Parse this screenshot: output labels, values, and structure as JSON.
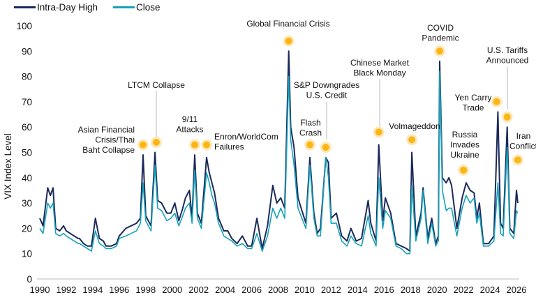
{
  "chart_data": {
    "type": "line",
    "title": "",
    "xlabel": "",
    "ylabel": "VIX Index Level",
    "xlim": [
      1990,
      2026
    ],
    "ylim": [
      0,
      100
    ],
    "grid": false,
    "legend_position": "top-left",
    "x_ticks": [
      "1990",
      "1992",
      "1994",
      "1996",
      "1998",
      "2000",
      "2002",
      "2004",
      "2006",
      "2008",
      "2010",
      "2012",
      "2014",
      "2016",
      "2018",
      "2020",
      "2022",
      "2024",
      "2026"
    ],
    "y_ticks": [
      "0",
      "10",
      "20",
      "30",
      "40",
      "50",
      "60",
      "70",
      "80",
      "90",
      "100"
    ],
    "colors": {
      "high": "#1b2a5c",
      "close": "#16a2b8",
      "marker": "#fdb515",
      "marker_halo": "#fde9b8",
      "leader": "#bbbbbb"
    },
    "x": [
      1990.0,
      1990.25,
      1990.6,
      1990.8,
      1991.0,
      1991.2,
      1991.5,
      1991.8,
      1992.0,
      1992.3,
      1992.6,
      1992.9,
      1993.0,
      1993.3,
      1993.6,
      1993.9,
      1994.2,
      1994.5,
      1994.8,
      1995.0,
      1995.4,
      1995.8,
      1996.0,
      1996.5,
      1996.9,
      1997.3,
      1997.6,
      1997.8,
      1998.0,
      1998.4,
      1998.7,
      1998.9,
      1999.2,
      1999.6,
      1999.9,
      2000.2,
      2000.5,
      2000.8,
      2001.0,
      2001.3,
      2001.5,
      2001.7,
      2001.9,
      2002.2,
      2002.6,
      2002.8,
      2003.0,
      2003.2,
      2003.5,
      2003.9,
      2004.2,
      2004.5,
      2004.9,
      2005.3,
      2005.7,
      2006.0,
      2006.4,
      2006.8,
      2007.2,
      2007.6,
      2007.9,
      2008.2,
      2008.5,
      2008.8,
      2008.95,
      2009.2,
      2009.5,
      2009.8,
      2010.1,
      2010.4,
      2010.7,
      2010.95,
      2011.2,
      2011.6,
      2011.8,
      2012.0,
      2012.4,
      2012.8,
      2013.2,
      2013.5,
      2013.9,
      2014.3,
      2014.8,
      2015.0,
      2015.4,
      2015.6,
      2015.9,
      2016.1,
      2016.5,
      2016.9,
      2017.3,
      2017.7,
      2017.95,
      2018.1,
      2018.4,
      2018.8,
      2018.95,
      2019.3,
      2019.6,
      2019.9,
      2020.1,
      2020.2,
      2020.4,
      2020.7,
      2020.9,
      2021.1,
      2021.5,
      2021.9,
      2022.2,
      2022.5,
      2022.8,
      2023.0,
      2023.2,
      2023.5,
      2023.9,
      2024.3,
      2024.6,
      2024.8,
      2025.0,
      2025.3,
      2025.5,
      2025.8,
      2026.0,
      2026.1
    ],
    "series": [
      {
        "name": "Intra-Day High",
        "values": [
          24,
          21,
          36,
          33,
          36,
          20,
          19,
          21,
          19,
          18,
          17,
          16,
          16,
          14,
          13,
          13,
          24,
          16,
          15,
          13,
          13,
          14,
          17,
          20,
          21,
          22,
          24,
          49,
          25,
          21,
          50,
          31,
          30,
          26,
          26,
          30,
          23,
          28,
          32,
          35,
          24,
          49,
          26,
          22,
          48,
          42,
          38,
          34,
          24,
          19,
          19,
          16,
          14,
          17,
          13,
          13,
          24,
          12,
          21,
          37,
          30,
          32,
          28,
          90,
          60,
          52,
          32,
          27,
          22,
          48,
          26,
          18,
          20,
          48,
          46,
          24,
          26,
          17,
          15,
          20,
          15,
          16,
          31,
          22,
          15,
          53,
          23,
          32,
          26,
          14,
          13,
          12,
          11,
          50,
          17,
          26,
          36,
          16,
          24,
          14,
          17,
          86,
          40,
          38,
          40,
          37,
          20,
          32,
          38,
          35,
          34,
          24,
          30,
          14,
          14,
          17,
          66,
          22,
          20,
          60,
          20,
          18,
          35,
          30
        ]
      },
      {
        "name": "Close",
        "values": [
          20,
          18,
          30,
          28,
          30,
          18,
          17,
          18,
          17,
          16,
          15,
          14,
          14,
          13,
          12,
          11,
          19,
          14,
          13,
          12,
          12,
          13,
          16,
          17,
          18,
          19,
          22,
          38,
          23,
          19,
          45,
          28,
          27,
          23,
          24,
          26,
          21,
          25,
          28,
          30,
          22,
          43,
          24,
          20,
          42,
          38,
          33,
          30,
          22,
          17,
          16,
          15,
          13,
          14,
          12,
          12,
          18,
          11,
          17,
          28,
          24,
          28,
          24,
          80,
          55,
          45,
          28,
          24,
          20,
          45,
          24,
          17,
          17,
          48,
          40,
          22,
          22,
          15,
          13,
          17,
          14,
          13,
          25,
          18,
          13,
          40,
          20,
          27,
          24,
          13,
          12,
          10,
          10,
          37,
          15,
          24,
          35,
          14,
          22,
          13,
          15,
          82,
          35,
          27,
          28,
          28,
          17,
          28,
          33,
          30,
          32,
          22,
          26,
          13,
          13,
          15,
          38,
          18,
          17,
          52,
          18,
          16,
          27,
          26
        ]
      }
    ],
    "annotations": [
      {
        "label": [
          "Asian Financial",
          "Crisis/Thai",
          "Baht Collapse"
        ],
        "x": 1997.8,
        "y": 53
      },
      {
        "label": [
          "LTCM Collapse"
        ],
        "x": 1998.8,
        "y": 54
      },
      {
        "label": [
          "9/11",
          "Attacks"
        ],
        "x": 2001.7,
        "y": 53
      },
      {
        "label": [
          "Enron/WorldCom",
          "Failures"
        ],
        "x": 2002.6,
        "y": 53
      },
      {
        "label": [
          "Global Financial Crisis"
        ],
        "x": 2008.8,
        "y": 94
      },
      {
        "label": [
          "Flash",
          "Crash"
        ],
        "x": 2010.4,
        "y": 53
      },
      {
        "label": [
          "S&P Downgrades",
          "U.S. Credit"
        ],
        "x": 2011.6,
        "y": 52
      },
      {
        "label": [
          "Chinese Market",
          "Black Monday"
        ],
        "x": 2015.6,
        "y": 58
      },
      {
        "label": [
          "Volmageddon"
        ],
        "x": 2018.1,
        "y": 55
      },
      {
        "label": [
          "COVID",
          "Pandemic"
        ],
        "x": 2020.2,
        "y": 90
      },
      {
        "label": [
          "Russia",
          "Invades",
          "Ukraine"
        ],
        "x": 2022.0,
        "y": 43
      },
      {
        "label": [
          "Yen Carry",
          "Trade"
        ],
        "x": 2024.5,
        "y": 70
      },
      {
        "label": [
          "U.S. Tariffs",
          "Announced"
        ],
        "x": 2025.3,
        "y": 64
      },
      {
        "label": [
          "Iran",
          "Conflict"
        ],
        "x": 2026.1,
        "y": 47
      }
    ]
  },
  "legend": {
    "high": "Intra-Day High",
    "close": "Close"
  }
}
